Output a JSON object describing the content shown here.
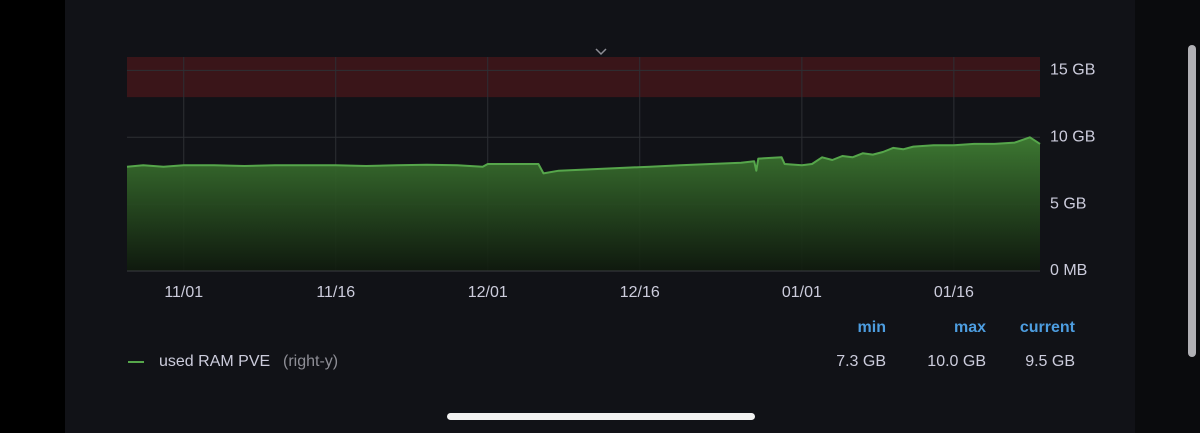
{
  "chart_data": {
    "type": "area",
    "x": [
      -5.6,
      -4,
      -2,
      0,
      3,
      6,
      9,
      12,
      15,
      18,
      21,
      24,
      27,
      29.5,
      30,
      33,
      35,
      35.5,
      37,
      40,
      43,
      46,
      49,
      52,
      55,
      56.3,
      56.5,
      56.7,
      59,
      59.3,
      61,
      62,
      63,
      64,
      65,
      66,
      67,
      68,
      69,
      70,
      71,
      72,
      74,
      76,
      78,
      80,
      82,
      83.5,
      84.5
    ],
    "series": [
      {
        "name": "used RAM PVE",
        "axis_note": "(right-y)",
        "color": "#56a64b",
        "axis": "y2",
        "values": [
          7.8,
          7.9,
          7.8,
          7.9,
          7.9,
          7.85,
          7.9,
          7.9,
          7.9,
          7.85,
          7.9,
          7.95,
          7.9,
          7.8,
          8.0,
          8.0,
          8.0,
          7.3,
          7.5,
          7.6,
          7.7,
          7.8,
          7.9,
          8.0,
          8.1,
          8.2,
          7.5,
          8.4,
          8.5,
          8.0,
          7.9,
          8.0,
          8.5,
          8.3,
          8.6,
          8.5,
          8.8,
          8.7,
          8.9,
          9.2,
          9.1,
          9.3,
          9.4,
          9.4,
          9.5,
          9.5,
          9.6,
          10.0,
          9.5
        ]
      }
    ],
    "xlim": [
      -5.6,
      84.5
    ],
    "xticks": [
      {
        "value": 0,
        "label": "11/01"
      },
      {
        "value": 15,
        "label": "11/16"
      },
      {
        "value": 30,
        "label": "12/01"
      },
      {
        "value": 45,
        "label": "12/16"
      },
      {
        "value": 61,
        "label": "01/01"
      },
      {
        "value": 76,
        "label": "01/16"
      }
    ],
    "y2lim": [
      0,
      16
    ],
    "y2ticks": [
      {
        "value": 0,
        "label": "0 MB"
      },
      {
        "value": 5,
        "label": "5 GB"
      },
      {
        "value": 10,
        "label": "10 GB"
      },
      {
        "value": 15,
        "label": "15 GB"
      }
    ],
    "grid": true,
    "thresholds": [
      {
        "from": 13,
        "to": 16,
        "color": "#3a1519"
      }
    ],
    "legend_table": {
      "columns": [
        "min",
        "max",
        "current"
      ],
      "rows": [
        {
          "cells": [
            "7.3 GB",
            "10.0 GB",
            "9.5 GB"
          ]
        }
      ]
    }
  }
}
